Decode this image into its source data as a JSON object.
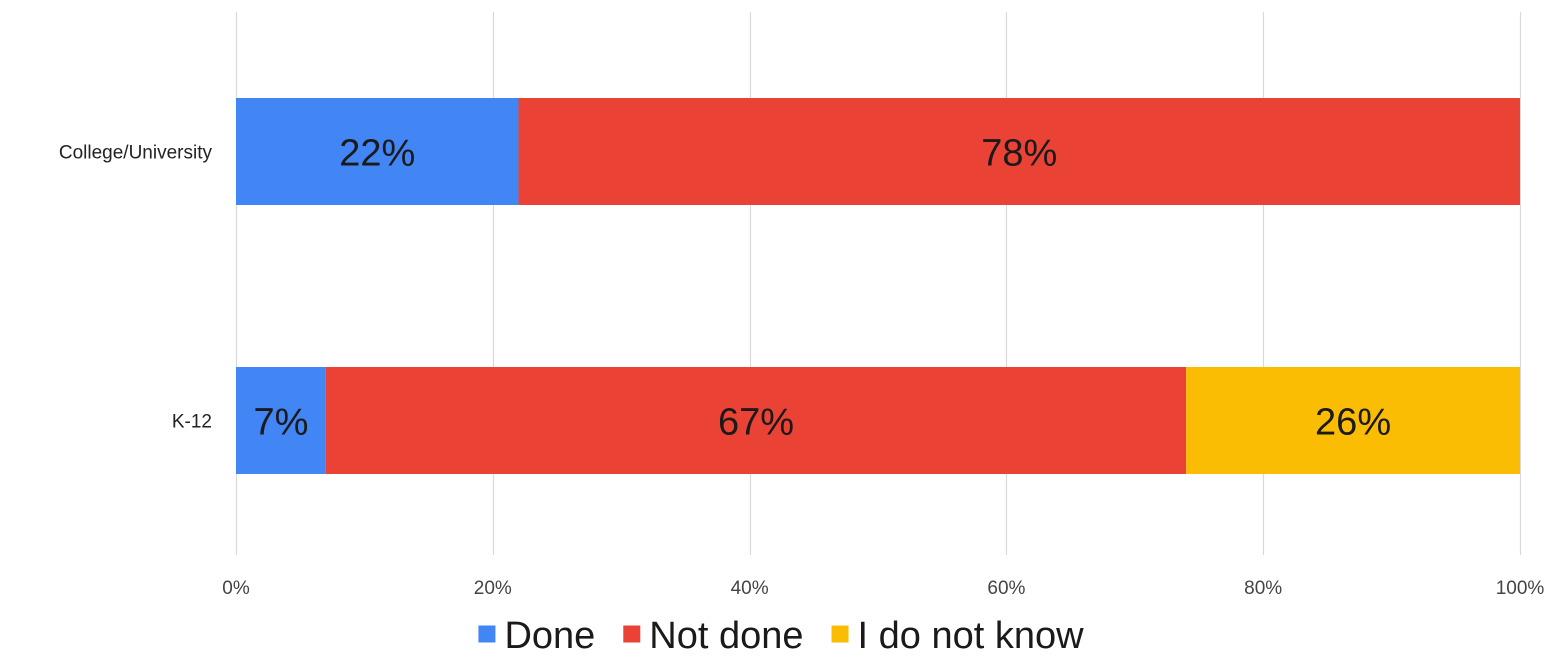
{
  "chart_data": {
    "type": "bar",
    "orientation": "horizontal",
    "stacked": true,
    "normalized_percent": true,
    "title": "",
    "xlabel": "",
    "ylabel": "",
    "categories": [
      "College/University",
      "K-12"
    ],
    "series": [
      {
        "name": "Done",
        "color": "#4285f4",
        "values": [
          22,
          7
        ],
        "labels": [
          "22%",
          "7%"
        ]
      },
      {
        "name": "Not done",
        "color": "#ea4335",
        "values": [
          78,
          67
        ],
        "labels": [
          "78%",
          "67%"
        ]
      },
      {
        "name": "I do not know",
        "color": "#fbbc04",
        "values": [
          0,
          26
        ],
        "labels": [
          "",
          "26%"
        ]
      }
    ],
    "xlim": [
      0,
      100
    ],
    "x_ticks": [
      0,
      20,
      40,
      60,
      80,
      100
    ],
    "x_tick_labels": [
      "0%",
      "20%",
      "40%",
      "60%",
      "80%",
      "100%"
    ],
    "grid": "vertical",
    "gridline_color": "#d9d9d9",
    "legend_position": "bottom"
  }
}
